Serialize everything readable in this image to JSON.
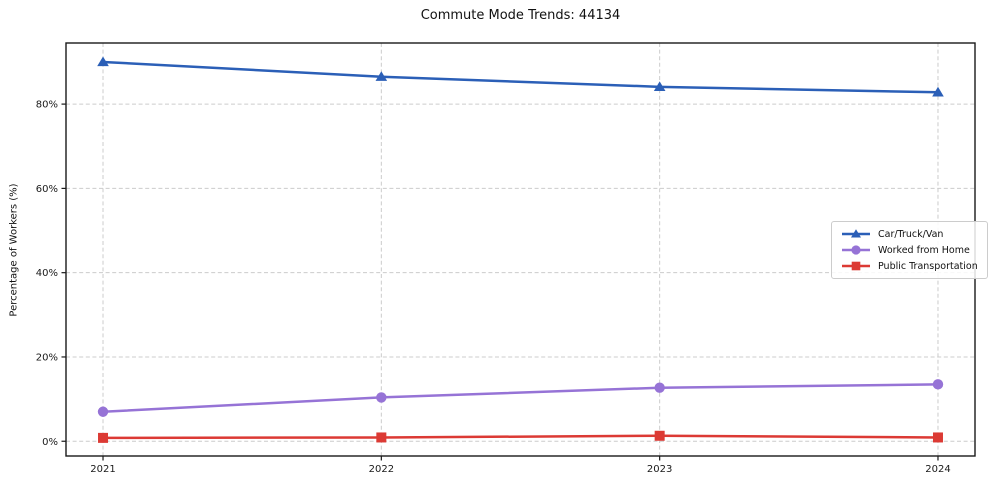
{
  "title": "Commute Mode Trends: 44134",
  "chart_data": {
    "type": "line",
    "title": "Commute Mode Trends: 44134",
    "xlabel": "",
    "ylabel": "Percentage of Workers (%)",
    "x": [
      2021,
      2022,
      2023,
      2024
    ],
    "x_tick_labels": [
      "2021",
      "2022",
      "2023",
      "2024"
    ],
    "y_ticks": [
      0,
      20,
      40,
      60,
      80
    ],
    "y_tick_labels": [
      "0%",
      "20%",
      "40%",
      "60%",
      "80%"
    ],
    "xlim": [
      2020.867,
      2024.133
    ],
    "ylim": [
      -3.5,
      94.5
    ],
    "grid": true,
    "grid_style": "dashed",
    "legend_position": "center-right",
    "series": [
      {
        "name": "Car/Truck/Van",
        "color": "#2b5fb7",
        "marker": "triangle-up",
        "values": [
          90.0,
          86.5,
          84.1,
          82.8
        ]
      },
      {
        "name": "Worked from Home",
        "color": "#9673d6",
        "marker": "circle",
        "values": [
          7.0,
          10.4,
          12.7,
          13.5
        ]
      },
      {
        "name": "Public Transportation",
        "color": "#dc3a34",
        "marker": "square",
        "values": [
          0.8,
          0.9,
          1.3,
          0.9
        ]
      }
    ],
    "colors": {
      "grid": "#cccccc",
      "spine": "#1a1a1a",
      "tick_label": "#1a1a1a",
      "legend_border": "#cccccc",
      "background": "#ffffff"
    }
  }
}
